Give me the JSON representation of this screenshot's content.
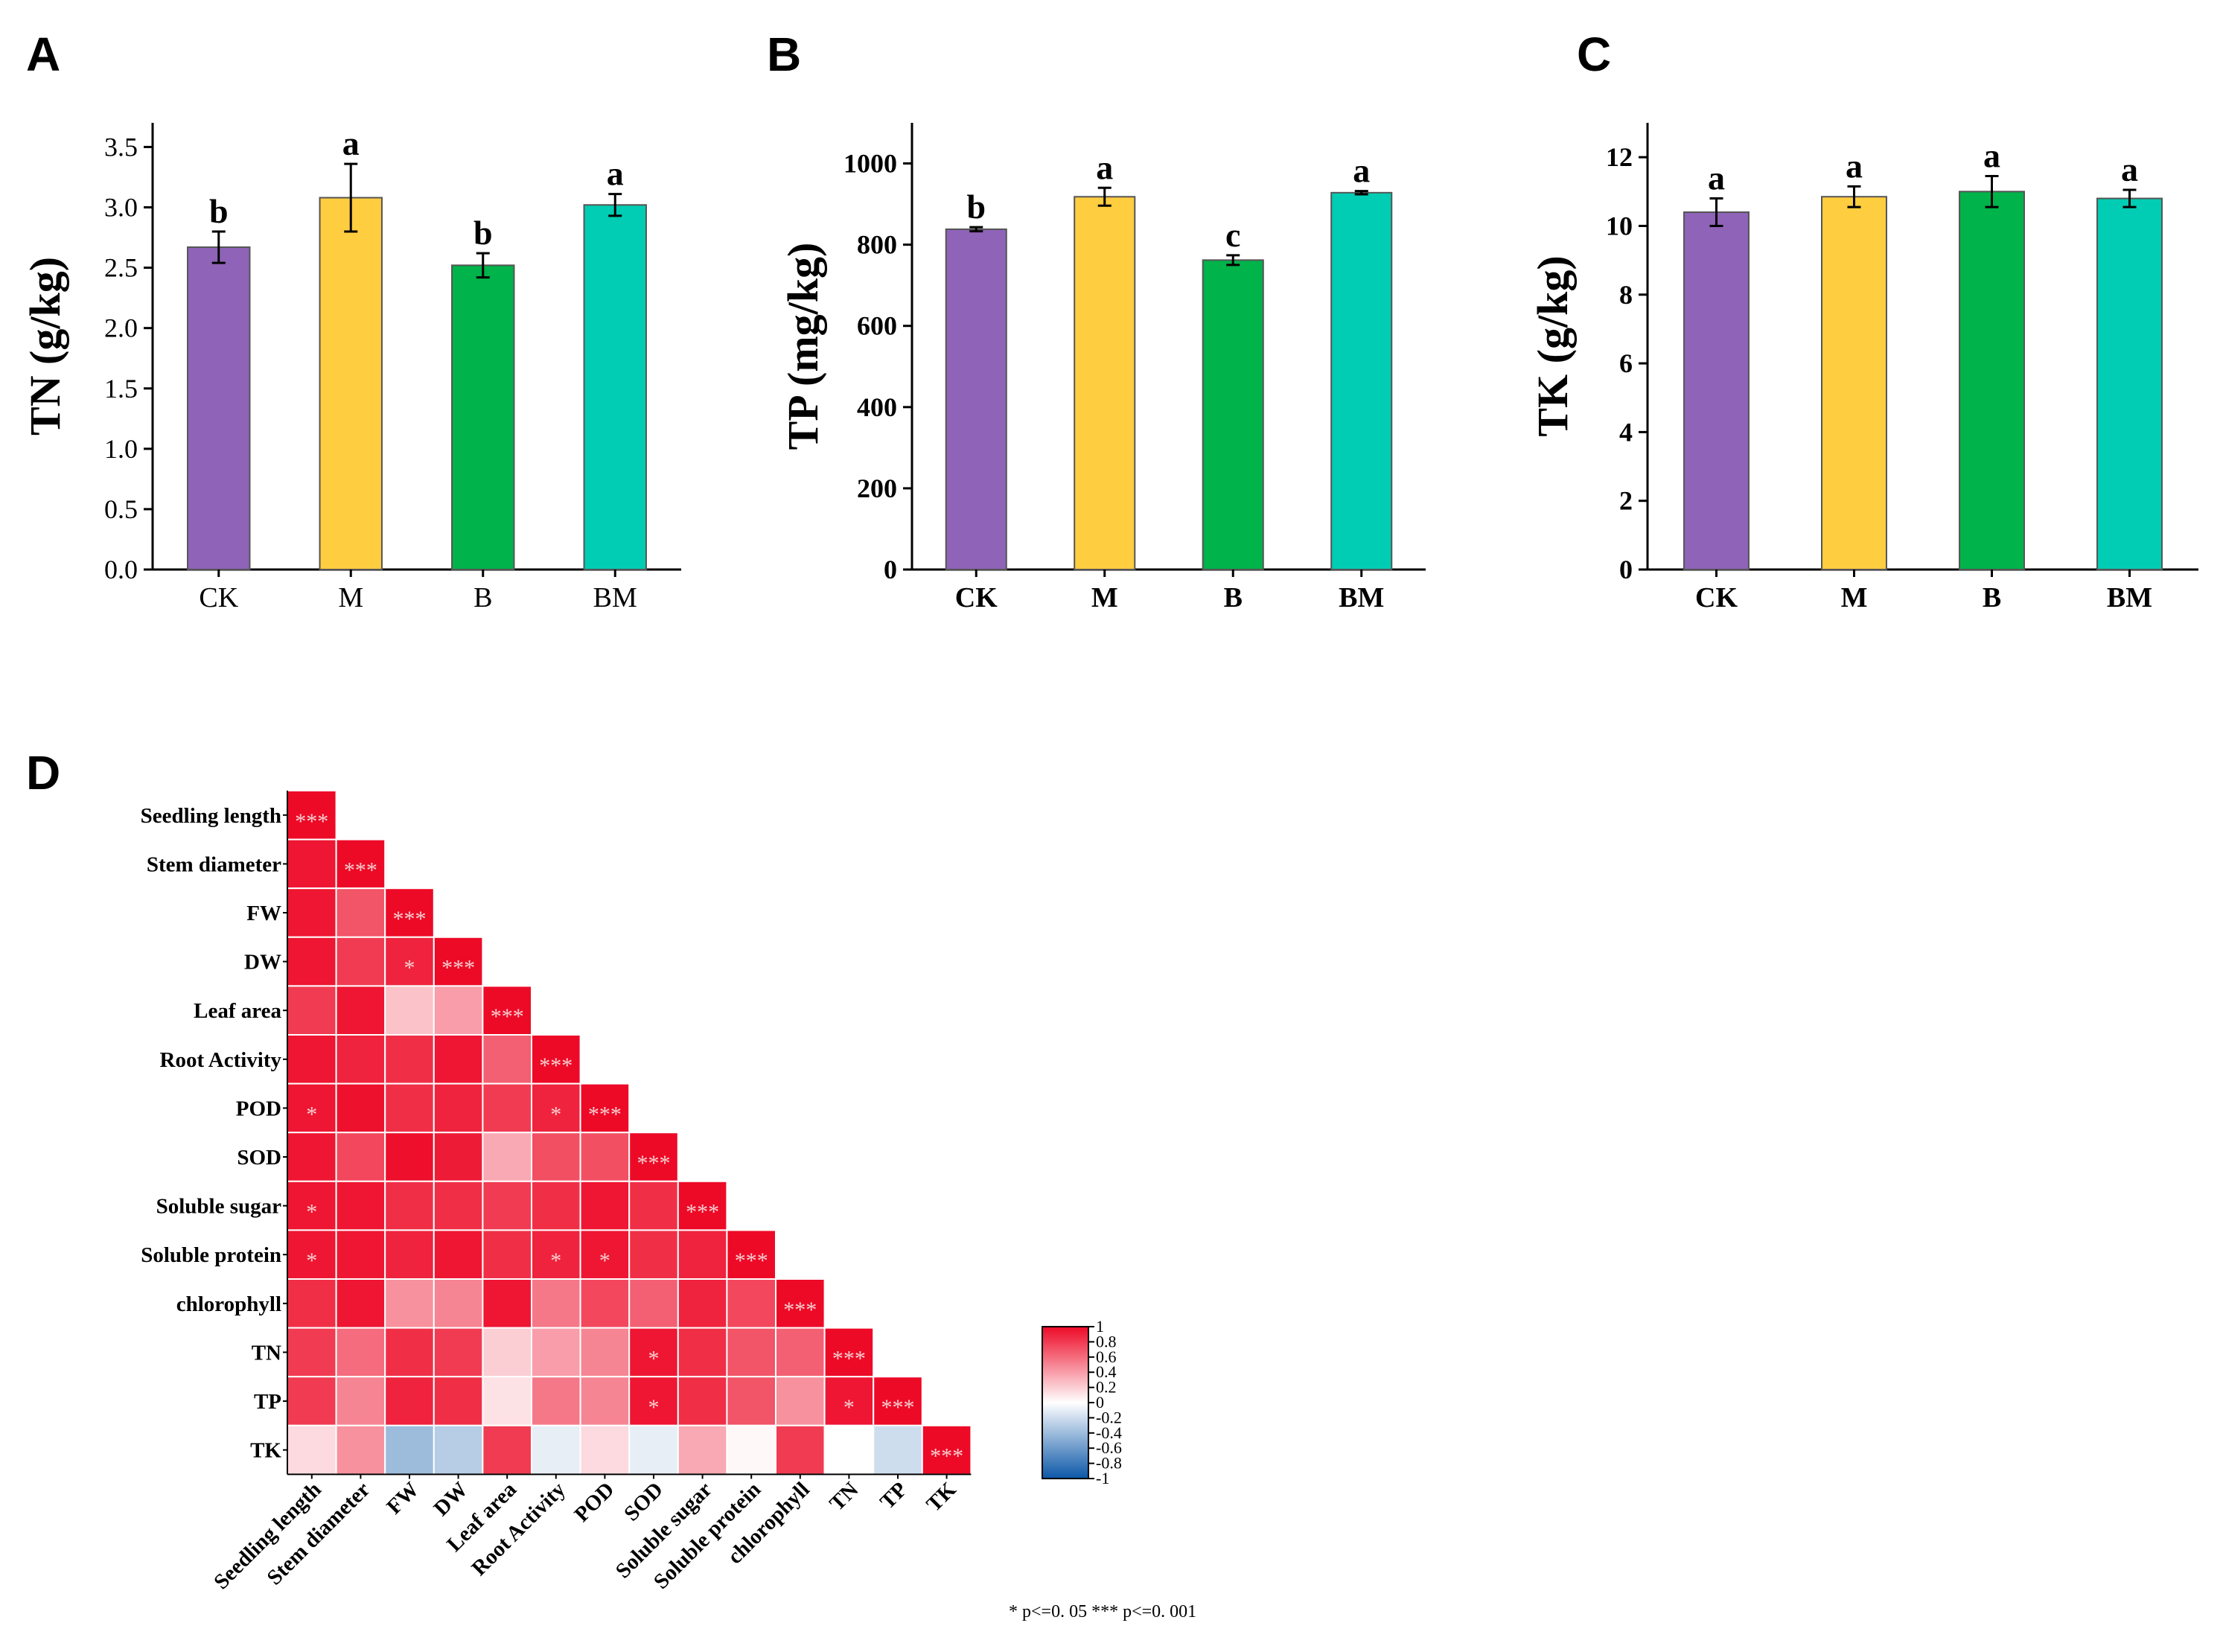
{
  "chart_data": [
    {
      "panel": "A",
      "type": "bar",
      "ylabel": "TN (g/kg)",
      "categories": [
        "CK",
        "M",
        "B",
        "BM"
      ],
      "values": [
        2.67,
        3.08,
        2.52,
        3.02
      ],
      "errors": [
        0.13,
        0.28,
        0.1,
        0.09
      ],
      "significance": [
        "b",
        "a",
        "b",
        "a"
      ],
      "ylim": [
        0,
        3.7
      ],
      "yticks": [
        0.0,
        0.5,
        1.0,
        1.5,
        2.0,
        2.5,
        3.0,
        3.5
      ],
      "ytick_labels": [
        "0.0",
        "0.5",
        "1.0",
        "1.5",
        "2.0",
        "2.5",
        "3.0",
        "3.5"
      ],
      "colors": [
        "#8f63b8",
        "#ffcd40",
        "#00b34a",
        "#00cdb3"
      ]
    },
    {
      "panel": "B",
      "type": "bar",
      "ylabel": "TP (mg/kg)",
      "categories": [
        "CK",
        "M",
        "B",
        "BM"
      ],
      "values": [
        838,
        918,
        762,
        928
      ],
      "errors": [
        5,
        22,
        12,
        4
      ],
      "significance": [
        "b",
        "a",
        "c",
        "a"
      ],
      "ylim": [
        0,
        1100
      ],
      "yticks": [
        0,
        200,
        400,
        600,
        800,
        1000
      ],
      "ytick_labels": [
        "0",
        "200",
        "400",
        "600",
        "800",
        "1000"
      ],
      "colors": [
        "#8f63b8",
        "#ffcd40",
        "#00b34a",
        "#00cdb3"
      ]
    },
    {
      "panel": "C",
      "type": "bar",
      "ylabel": "TK (g/kg)",
      "categories": [
        "CK",
        "M",
        "B",
        "BM"
      ],
      "values": [
        10.4,
        10.85,
        11.0,
        10.8
      ],
      "errors": [
        0.4,
        0.3,
        0.45,
        0.25
      ],
      "significance": [
        "a",
        "a",
        "a",
        "a"
      ],
      "ylim": [
        0,
        13
      ],
      "yticks": [
        0,
        2,
        4,
        6,
        8,
        10,
        12
      ],
      "ytick_labels": [
        "0",
        "2",
        "4",
        "6",
        "8",
        "10",
        "12"
      ],
      "colors": [
        "#8f63b8",
        "#ffcd40",
        "#00b34a",
        "#00cdb3"
      ]
    },
    {
      "panel": "D",
      "type": "heatmap",
      "labels": [
        "Seedling length",
        "Stem diameter",
        "FW",
        "DW",
        "Leaf area",
        "Root Activity",
        "POD",
        "SOD",
        "Soluble sugar",
        "Soluble protein",
        "chlorophyll",
        "TN",
        "TP",
        "TK"
      ],
      "matrix": [
        [
          1.0
        ],
        [
          0.95,
          1.0
        ],
        [
          0.95,
          0.7,
          1.0
        ],
        [
          0.95,
          0.8,
          0.9,
          1.0
        ],
        [
          0.8,
          0.95,
          0.25,
          0.4,
          1.0
        ],
        [
          0.95,
          0.9,
          0.85,
          0.95,
          0.65,
          1.0
        ],
        [
          0.95,
          0.97,
          0.85,
          0.9,
          0.8,
          0.9,
          1.0
        ],
        [
          0.95,
          0.75,
          0.98,
          0.93,
          0.35,
          0.72,
          0.72,
          1.0
        ],
        [
          0.95,
          0.95,
          0.85,
          0.85,
          0.8,
          0.85,
          0.95,
          0.85,
          1.0
        ],
        [
          0.95,
          0.95,
          0.9,
          0.95,
          0.85,
          0.9,
          0.95,
          0.85,
          0.9,
          1.0
        ],
        [
          0.85,
          0.95,
          0.45,
          0.5,
          0.95,
          0.55,
          0.75,
          0.65,
          0.9,
          0.75,
          1.0
        ],
        [
          0.8,
          0.6,
          0.85,
          0.8,
          0.2,
          0.4,
          0.5,
          0.95,
          0.85,
          0.7,
          0.65,
          1.0
        ],
        [
          0.8,
          0.5,
          0.9,
          0.85,
          0.12,
          0.55,
          0.5,
          0.95,
          0.85,
          0.7,
          0.45,
          0.95,
          1.0
        ],
        [
          0.15,
          0.45,
          -0.4,
          -0.3,
          0.8,
          -0.1,
          0.15,
          -0.1,
          0.35,
          0.03,
          0.8,
          0.0,
          -0.2,
          1.0
        ]
      ],
      "stars": [
        [
          "***"
        ],
        [
          "",
          "***"
        ],
        [
          "",
          "",
          "***"
        ],
        [
          "",
          "",
          "*",
          "***"
        ],
        [
          "",
          "",
          "",
          "",
          "***"
        ],
        [
          "",
          "",
          "",
          "",
          "",
          "***"
        ],
        [
          "*",
          "",
          "",
          "",
          "",
          "*",
          "***"
        ],
        [
          "",
          "",
          "",
          "",
          "",
          "",
          "",
          "***"
        ],
        [
          "*",
          "",
          "",
          "",
          "",
          "",
          "",
          "",
          "***"
        ],
        [
          "*",
          "",
          "",
          "",
          "",
          "*",
          "*",
          "",
          "",
          "***"
        ],
        [
          "",
          "",
          "",
          "",
          "",
          "",
          "",
          "",
          "",
          "",
          "***"
        ],
        [
          "",
          "",
          "",
          "",
          "",
          "",
          "",
          "*",
          "",
          "",
          "",
          "***"
        ],
        [
          "",
          "",
          "",
          "",
          "",
          "",
          "",
          "*",
          "",
          "",
          "",
          "*",
          "***"
        ],
        [
          "",
          "",
          "",
          "",
          "",
          "",
          "",
          "",
          "",
          "",
          "",
          "",
          "",
          "***"
        ]
      ],
      "legend_ticks": [
        "1",
        "0.8",
        "0.6",
        "0.4",
        "0.2",
        "0",
        "-0.2",
        "-0.4",
        "-0.6",
        "-0.8",
        "-1"
      ],
      "legend_values": [
        1,
        0.8,
        0.6,
        0.4,
        0.2,
        0,
        -0.2,
        -0.4,
        -0.6,
        -0.8,
        -1
      ],
      "color_scale": {
        "negative": "#0b57a8",
        "zero": "#ffffff",
        "positive": "#ed0a27"
      },
      "note": "*  p<=0. 05    ***  p<=0. 001"
    }
  ],
  "panel_labels": {
    "a": "A",
    "b": "B",
    "c": "C",
    "d": "D"
  }
}
